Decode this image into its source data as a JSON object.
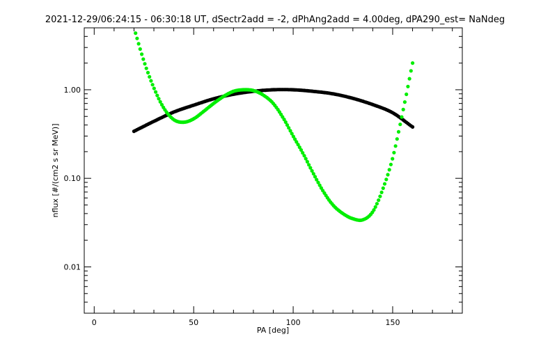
{
  "chart_data": {
    "type": "scatter",
    "title": "2021-12-29/06:24:15 - 06:30:18 UT, dSectr2add = -2, dPhAng2add = 4.00deg, dPA290_est=    NaNdeg",
    "xlabel": "PA [deg]",
    "ylabel": "nflux [#/(cm2 s sr MeV)]",
    "xlim": [
      -5,
      185
    ],
    "ylim": [
      0.003,
      5.0
    ],
    "yscale": "log",
    "grid": false,
    "x_ticks": [
      {
        "value": 0,
        "label": "0"
      },
      {
        "value": 50,
        "label": "50"
      },
      {
        "value": 100,
        "label": "100"
      },
      {
        "value": 150,
        "label": "150"
      }
    ],
    "x_minor_step": 10,
    "y_ticks": [
      {
        "value": 0.01,
        "label": "0.01"
      },
      {
        "value": 0.1,
        "label": "0.10"
      },
      {
        "value": 1.0,
        "label": "1.00"
      }
    ],
    "series": [
      {
        "color": "#000000",
        "x": [
          20,
          30,
          40,
          50,
          60,
          70,
          80,
          90,
          100,
          110,
          120,
          130,
          140,
          150,
          160
        ],
        "values": [
          0.34,
          0.44,
          0.56,
          0.67,
          0.79,
          0.89,
          0.96,
          1.0,
          1.0,
          0.96,
          0.9,
          0.8,
          0.68,
          0.55,
          0.38
        ]
      },
      {
        "color": "#00ee00",
        "x": [
          20,
          25,
          30,
          35,
          40,
          45,
          50,
          55,
          60,
          65,
          70,
          75,
          80,
          85,
          90,
          95,
          100,
          105,
          110,
          115,
          120,
          125,
          130,
          135,
          140,
          145,
          150,
          155,
          160
        ],
        "values": [
          5.0,
          2.1,
          1.05,
          0.62,
          0.46,
          0.43,
          0.47,
          0.57,
          0.7,
          0.84,
          0.96,
          1.0,
          0.98,
          0.87,
          0.7,
          0.48,
          0.3,
          0.19,
          0.115,
          0.072,
          0.05,
          0.04,
          0.035,
          0.034,
          0.042,
          0.075,
          0.17,
          0.55,
          2.0
        ]
      }
    ]
  }
}
